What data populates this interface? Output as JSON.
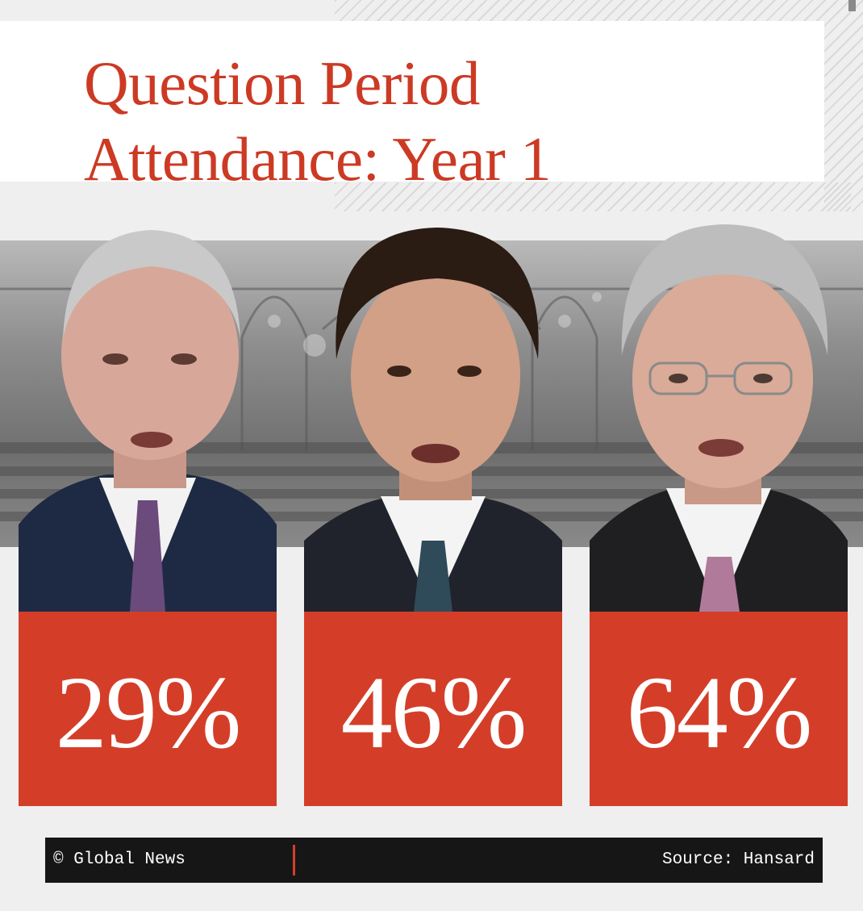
{
  "title": {
    "line1": "Question Period",
    "line2": "Attendance: Year 1"
  },
  "panels": [
    {
      "percent_label": "29%",
      "value": 29
    },
    {
      "percent_label": "46%",
      "value": 46
    },
    {
      "percent_label": "64%",
      "value": 64
    }
  ],
  "footer": {
    "credit": "© Global News",
    "source": "Source: Hansard"
  },
  "colors": {
    "title_red": "#cc3a24",
    "stat_red": "#d43e28",
    "footer_bg": "#161616",
    "page_bg": "#efefef"
  }
}
